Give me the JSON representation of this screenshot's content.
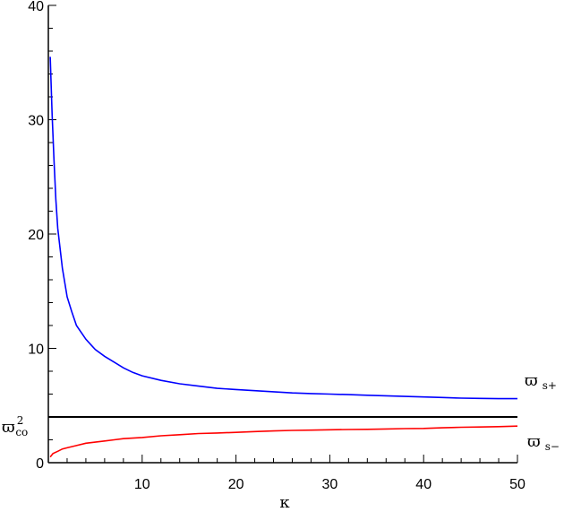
{
  "chart_data": {
    "type": "line",
    "title": "",
    "xlabel": "κ",
    "ylabel": "",
    "xlim": [
      0,
      50
    ],
    "ylim": [
      0,
      40
    ],
    "x_ticks": [
      10,
      20,
      30,
      40,
      50
    ],
    "y_ticks": [
      0,
      10,
      20,
      30,
      40
    ],
    "x_tick_labels": [
      "10",
      "20",
      "30",
      "40",
      "50"
    ],
    "y_tick_labels": [
      "0",
      "10",
      "20",
      "30",
      "40"
    ],
    "grid": false,
    "series": [
      {
        "name": "ϖs+",
        "color": "#0000ff",
        "x": [
          0.2,
          0.4,
          0.6,
          0.8,
          1,
          1.5,
          2,
          2.5,
          3,
          4,
          5,
          6,
          7,
          8,
          9,
          10,
          12,
          14,
          16,
          18,
          20,
          22,
          24,
          26,
          28,
          30,
          32,
          34,
          36,
          38,
          40,
          42,
          44,
          46,
          48,
          50
        ],
        "y": [
          35.5,
          30.5,
          26.5,
          23,
          20.5,
          17,
          14.5,
          13.2,
          12,
          10.8,
          9.9,
          9.3,
          8.8,
          8.3,
          7.9,
          7.6,
          7.2,
          6.9,
          6.7,
          6.5,
          6.4,
          6.3,
          6.2,
          6.1,
          6.05,
          6.0,
          5.95,
          5.9,
          5.85,
          5.8,
          5.75,
          5.7,
          5.65,
          5.62,
          5.6,
          5.6
        ]
      },
      {
        "name": "ϖs−",
        "color": "#ff0000",
        "x": [
          0.2,
          0.5,
          1,
          1.5,
          2,
          3,
          4,
          5,
          6,
          7,
          8,
          10,
          12,
          14,
          16,
          18,
          20,
          22,
          24,
          26,
          28,
          30,
          32,
          34,
          36,
          38,
          40,
          42,
          44,
          46,
          48,
          50
        ],
        "y": [
          0.5,
          0.8,
          1.0,
          1.2,
          1.3,
          1.5,
          1.7,
          1.8,
          1.9,
          2.0,
          2.1,
          2.2,
          2.35,
          2.45,
          2.55,
          2.6,
          2.65,
          2.72,
          2.78,
          2.82,
          2.85,
          2.88,
          2.9,
          2.92,
          2.95,
          2.98,
          3.0,
          3.05,
          3.1,
          3.12,
          3.15,
          3.2
        ]
      },
      {
        "name": "ϖ²co",
        "color": "#000000",
        "x": [
          0,
          50
        ],
        "y": [
          4.0,
          4.0
        ]
      }
    ],
    "annotations": [
      {
        "series": "ϖs+",
        "base": "ϖ",
        "sub": "s+"
      },
      {
        "series": "ϖs−",
        "base": "ϖ",
        "sub": "s−"
      },
      {
        "series": "ϖ²co",
        "base": "ϖ",
        "sup": "2",
        "sub": "co"
      }
    ]
  }
}
